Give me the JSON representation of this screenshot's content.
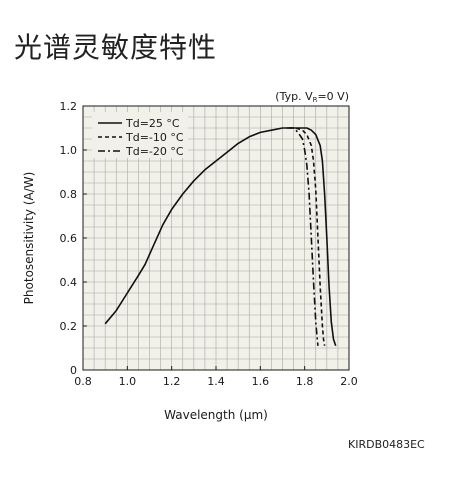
{
  "page": {
    "title": "光谱灵敏度特性",
    "code": "KIRDB0483EC"
  },
  "chart_data": {
    "type": "line",
    "xlabel": "Wavelength (μm)",
    "ylabel": "Photosensitivity (A/W)",
    "condition": {
      "prefix": "(Typ. V",
      "sub": "R",
      "suffix": "=0 V)"
    },
    "xlim": [
      0.8,
      2.0
    ],
    "ylim": [
      0,
      1.2
    ],
    "xticks": [
      "0.8",
      "1.0",
      "1.2",
      "1.4",
      "1.6",
      "1.8",
      "2.0"
    ],
    "yticks": [
      "0",
      "0.2",
      "0.4",
      "0.6",
      "0.8",
      "1.0",
      "1.2"
    ],
    "grid": true,
    "legend_position": "top-left",
    "series": [
      {
        "name": "Td=25 °C",
        "dash": "solid",
        "x": [
          0.9,
          0.95,
          1.0,
          1.05,
          1.08,
          1.12,
          1.16,
          1.2,
          1.25,
          1.3,
          1.35,
          1.4,
          1.45,
          1.5,
          1.55,
          1.6,
          1.65,
          1.7,
          1.73,
          1.76,
          1.79,
          1.81,
          1.83,
          1.85,
          1.87,
          1.88,
          1.89,
          1.9,
          1.91,
          1.92,
          1.93,
          1.94
        ],
        "y": [
          0.21,
          0.27,
          0.35,
          0.43,
          0.48,
          0.57,
          0.66,
          0.73,
          0.8,
          0.86,
          0.91,
          0.95,
          0.99,
          1.03,
          1.06,
          1.08,
          1.09,
          1.1,
          1.1,
          1.1,
          1.1,
          1.1,
          1.09,
          1.07,
          1.02,
          0.95,
          0.8,
          0.6,
          0.38,
          0.22,
          0.14,
          0.11
        ]
      },
      {
        "name": "Td=-10 °C",
        "dash": "dashed",
        "x": [
          1.73,
          1.76,
          1.79,
          1.81,
          1.83,
          1.84,
          1.85,
          1.86,
          1.87,
          1.88,
          1.885,
          1.89
        ],
        "y": [
          1.1,
          1.1,
          1.09,
          1.07,
          1.02,
          0.95,
          0.82,
          0.6,
          0.38,
          0.2,
          0.14,
          0.11
        ]
      },
      {
        "name": "Td=-20 °C",
        "dash": "dashdot",
        "x": [
          1.72,
          1.75,
          1.77,
          1.79,
          1.8,
          1.81,
          1.82,
          1.83,
          1.84,
          1.85,
          1.855,
          1.86
        ],
        "y": [
          1.1,
          1.1,
          1.08,
          1.05,
          1.0,
          0.93,
          0.8,
          0.6,
          0.4,
          0.22,
          0.16,
          0.11
        ]
      }
    ]
  }
}
